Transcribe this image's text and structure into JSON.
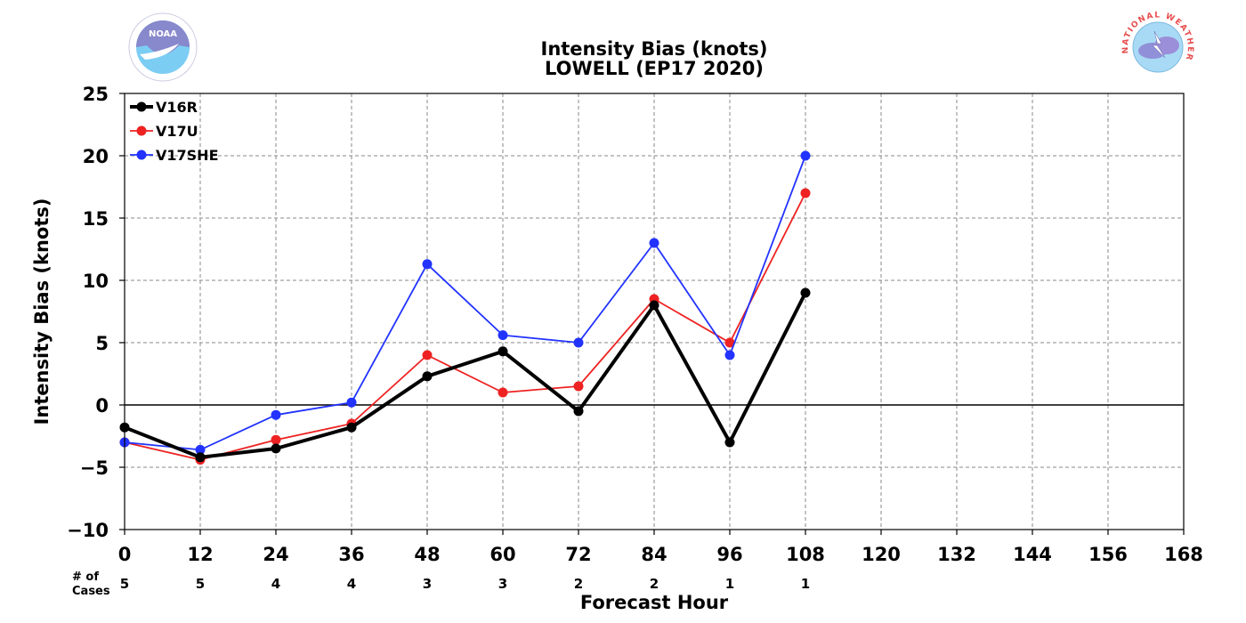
{
  "chart_data": {
    "type": "line",
    "title": "Intensity Bias (knots)",
    "subtitle": "LOWELL (EP17 2020)",
    "xlabel": "Forecast Hour",
    "ylabel": "Intensity Bias (knots)",
    "xlim": [
      0,
      168
    ],
    "ylim": [
      -10,
      25
    ],
    "x_ticks": [
      0,
      12,
      24,
      36,
      48,
      60,
      72,
      84,
      96,
      108,
      120,
      132,
      144,
      156,
      168
    ],
    "y_ticks": [
      -10,
      -5,
      0,
      5,
      10,
      15,
      20,
      25
    ],
    "y_tick_labels": [
      "−10",
      "−5",
      "0",
      "5",
      "10",
      "15",
      "20",
      "25"
    ],
    "grid": true,
    "legend_position": "top-left",
    "cases_label_line1": "# of",
    "cases_label_line2": "Cases",
    "cases": [
      {
        "x": 0,
        "n": "5"
      },
      {
        "x": 12,
        "n": "5"
      },
      {
        "x": 24,
        "n": "4"
      },
      {
        "x": 36,
        "n": "4"
      },
      {
        "x": 48,
        "n": "3"
      },
      {
        "x": 60,
        "n": "3"
      },
      {
        "x": 72,
        "n": "2"
      },
      {
        "x": 84,
        "n": "2"
      },
      {
        "x": 96,
        "n": "1"
      },
      {
        "x": 108,
        "n": "1"
      }
    ],
    "series": [
      {
        "name": "V16R",
        "color": "#000000",
        "bold": true,
        "x": [
          0,
          12,
          24,
          36,
          48,
          60,
          72,
          84,
          96,
          108
        ],
        "values": [
          -1.8,
          -4.2,
          -3.5,
          -1.8,
          2.3,
          4.3,
          -0.5,
          8.0,
          -3.0,
          9.0
        ]
      },
      {
        "name": "V17U",
        "color": "#ee2222",
        "bold": false,
        "x": [
          0,
          12,
          24,
          36,
          48,
          60,
          72,
          84,
          96,
          108
        ],
        "values": [
          -3.0,
          -4.4,
          -2.8,
          -1.5,
          4.0,
          1.0,
          1.5,
          8.5,
          5.0,
          17.0
        ]
      },
      {
        "name": "V17SHE",
        "color": "#2233ff",
        "bold": false,
        "x": [
          0,
          12,
          24,
          36,
          48,
          60,
          72,
          84,
          96,
          108
        ],
        "values": [
          -3.0,
          -3.6,
          -0.8,
          0.2,
          11.3,
          5.6,
          5.0,
          13.0,
          4.0,
          20.0
        ]
      }
    ]
  },
  "logos": {
    "noaa_text": "NOAA",
    "nws_text": "NATIONAL WEATHER SERVICE"
  }
}
